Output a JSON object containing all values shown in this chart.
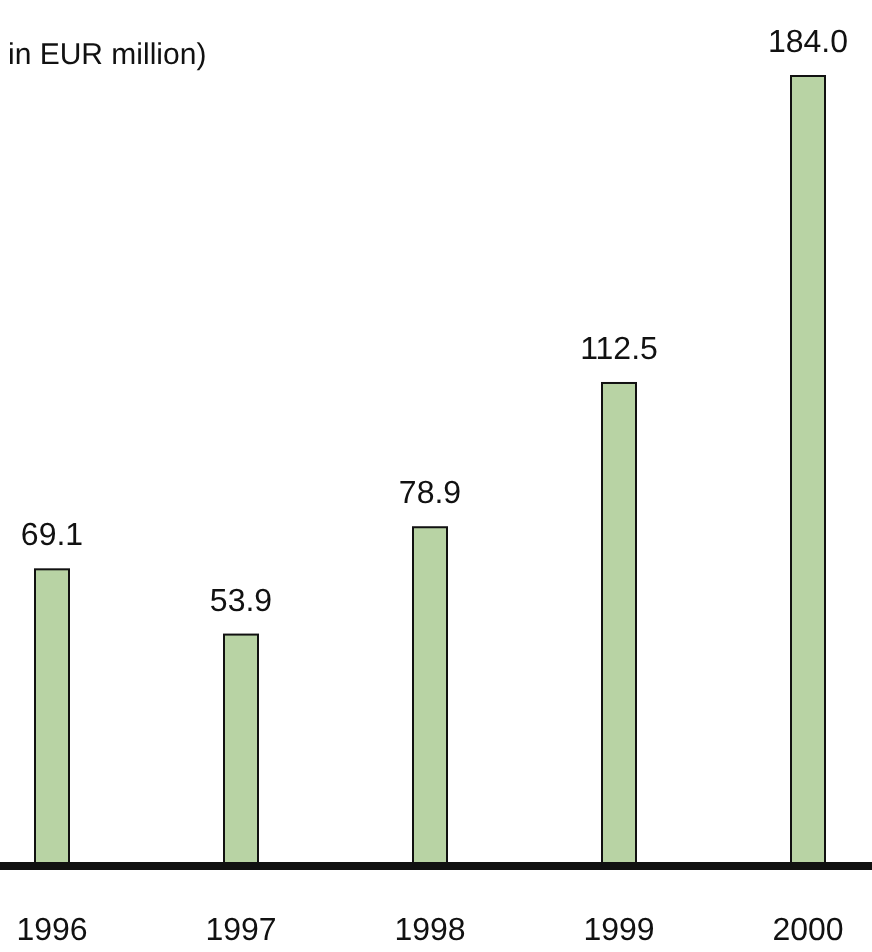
{
  "chart_data": {
    "type": "bar",
    "title": "in EUR million)",
    "categories": [
      "1996",
      "1997",
      "1998",
      "1999",
      "2000"
    ],
    "values": [
      69.1,
      53.9,
      78.9,
      112.5,
      184.0
    ],
    "value_labels": [
      "69.1",
      "53.9",
      "78.9",
      "112.5",
      "184.0"
    ],
    "color": "#b8d3a4"
  }
}
